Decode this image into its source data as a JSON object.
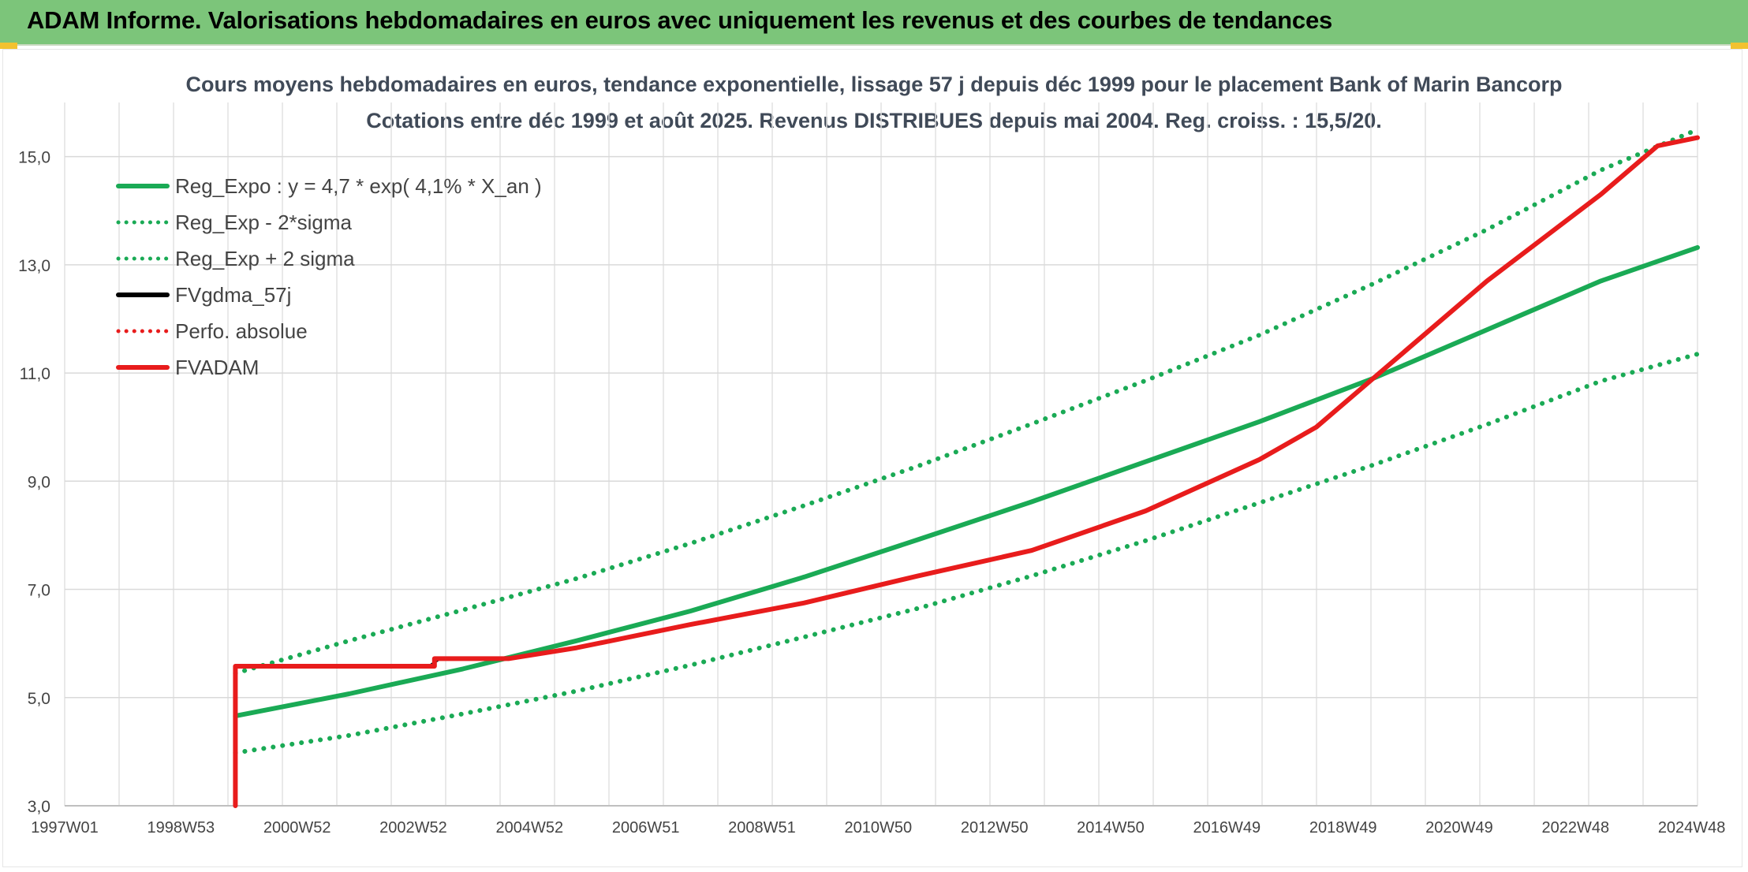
{
  "header": {
    "title": "ADAM Informe. Valorisations hebdomadaires en euros avec uniquement les revenus et des courbes de tendances"
  },
  "chart_data": {
    "type": "line",
    "title_line1": "Cours moyens hebdomadaires en euros, tendance exponentielle, lissage 57 j depuis déc 1999 pour le placement Bank of Marin Bancorp",
    "title_line2": "Cotations entre déc 1999 et août 2025. Revenus DISTRIBUES depuis mai 2004. Reg. croiss. : 15,5/20.",
    "xlabel": "",
    "ylabel": "",
    "x_tick_labels": [
      "1997W01",
      "1998W53",
      "2000W52",
      "2002W52",
      "2004W52",
      "2006W51",
      "2008W51",
      "2010W50",
      "2012W50",
      "2014W50",
      "2016W49",
      "2018W49",
      "2020W49",
      "2022W48",
      "2024W48"
    ],
    "x_range_years": [
      1997.0,
      2025.7
    ],
    "ylim": [
      3.0,
      16.0
    ],
    "y_ticks": [
      3.0,
      5.0,
      7.0,
      9.0,
      11.0,
      13.0,
      15.0
    ],
    "y_tick_labels": [
      "3,0",
      "5,0",
      "7,0",
      "9,0",
      "11,0",
      "13,0",
      "15,0"
    ],
    "grid": true,
    "legend_position": "top-left",
    "series": [
      {
        "name": "Reg_Expo : y = 4,7 * exp( 4,1% *  X_an )",
        "color": "#1aaa55",
        "style": "solid",
        "points": [
          [
            2000.0,
            4.66
          ],
          [
            2002.0,
            5.07
          ],
          [
            2004.0,
            5.53
          ],
          [
            2006.0,
            6.05
          ],
          [
            2008.0,
            6.6
          ],
          [
            2010.0,
            7.23
          ],
          [
            2012.0,
            7.92
          ],
          [
            2014.0,
            8.62
          ],
          [
            2016.0,
            9.36
          ],
          [
            2018.0,
            10.1
          ],
          [
            2020.0,
            10.9
          ],
          [
            2022.0,
            11.8
          ],
          [
            2024.0,
            12.7
          ],
          [
            2025.7,
            13.32
          ]
        ]
      },
      {
        "name": "Reg_Exp - 2*sigma",
        "color": "#1aaa55",
        "style": "dotted",
        "points": [
          [
            2000.0,
            3.98
          ],
          [
            2002.0,
            4.3
          ],
          [
            2004.0,
            4.7
          ],
          [
            2006.0,
            5.12
          ],
          [
            2008.0,
            5.6
          ],
          [
            2010.0,
            6.12
          ],
          [
            2012.0,
            6.65
          ],
          [
            2014.0,
            7.25
          ],
          [
            2016.0,
            7.9
          ],
          [
            2018.0,
            8.6
          ],
          [
            2020.0,
            9.3
          ],
          [
            2022.0,
            10.05
          ],
          [
            2024.0,
            10.85
          ],
          [
            2025.7,
            11.35
          ]
        ]
      },
      {
        "name": "Reg_Exp + 2 sigma",
        "color": "#1aaa55",
        "style": "dotted",
        "points": [
          [
            2000.0,
            5.45
          ],
          [
            2002.0,
            6.05
          ],
          [
            2004.0,
            6.62
          ],
          [
            2006.0,
            7.2
          ],
          [
            2008.0,
            7.85
          ],
          [
            2010.0,
            8.55
          ],
          [
            2012.0,
            9.28
          ],
          [
            2014.0,
            10.06
          ],
          [
            2016.0,
            10.86
          ],
          [
            2018.0,
            11.7
          ],
          [
            2020.0,
            12.65
          ],
          [
            2022.0,
            13.65
          ],
          [
            2024.0,
            14.75
          ],
          [
            2025.7,
            15.5
          ]
        ]
      },
      {
        "name": "FVgdma_57j",
        "color": "#000000",
        "style": "solid",
        "points": [
          [
            2000.0,
            5.58
          ],
          [
            2003.4,
            5.58
          ],
          [
            2003.6,
            5.72
          ],
          [
            2004.8,
            5.72
          ]
        ]
      },
      {
        "name": "Perfo. absolue",
        "color": "#e81c1c",
        "style": "dotted",
        "points": []
      },
      {
        "name": "FVADAM",
        "color": "#e81c1c",
        "style": "solid",
        "points": [
          [
            2000.0,
            3.0
          ],
          [
            2000.0,
            5.58
          ],
          [
            2003.5,
            5.58
          ],
          [
            2003.5,
            5.72
          ],
          [
            2004.8,
            5.72
          ],
          [
            2006.0,
            5.92
          ],
          [
            2008.0,
            6.35
          ],
          [
            2010.0,
            6.75
          ],
          [
            2012.0,
            7.25
          ],
          [
            2014.0,
            7.72
          ],
          [
            2016.0,
            8.45
          ],
          [
            2018.0,
            9.4
          ],
          [
            2019.0,
            10.0
          ],
          [
            2020.0,
            10.9
          ],
          [
            2022.0,
            12.7
          ],
          [
            2024.0,
            14.3
          ],
          [
            2025.0,
            15.2
          ],
          [
            2025.7,
            15.35
          ]
        ]
      }
    ]
  }
}
